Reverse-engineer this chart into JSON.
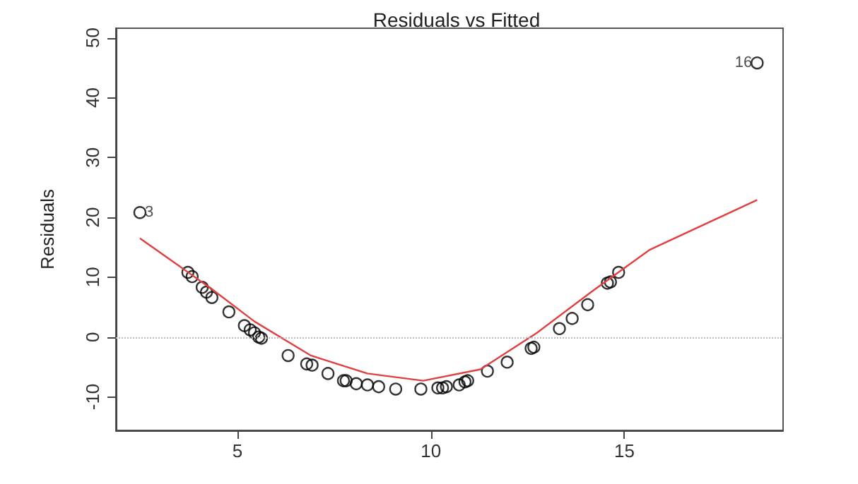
{
  "chart_data": {
    "type": "scatter",
    "title": "Residuals vs Fitted",
    "ylabel": "Residuals",
    "xlim": [
      1.86,
      19.1
    ],
    "ylim": [
      -15.6,
      51.6
    ],
    "xticks": [
      5,
      10,
      15
    ],
    "yticks": [
      -10,
      0,
      10,
      20,
      30,
      40,
      50
    ],
    "grid": false,
    "marker": "circle",
    "series": [
      {
        "color": "#000000",
        "x": [
          2.48,
          3.72,
          3.83,
          4.09,
          4.2,
          4.34,
          4.78,
          5.18,
          5.33,
          5.44,
          5.55,
          5.62,
          6.31,
          6.79,
          6.93,
          7.34,
          7.74,
          7.81,
          8.07,
          8.36,
          8.65,
          9.09,
          9.74,
          10.18,
          10.3,
          10.4,
          10.73,
          10.88,
          10.95,
          11.46,
          11.97,
          12.59,
          12.66,
          13.32,
          13.65,
          14.05,
          14.56,
          14.64,
          14.85,
          18.43
        ],
        "values": [
          20.8,
          10.8,
          10.1,
          8.3,
          7.5,
          6.6,
          4.2,
          1.9,
          1.2,
          0.7,
          0,
          -0.2,
          -3.1,
          -4.5,
          -4.7,
          -6.1,
          -7.3,
          -7.3,
          -7.8,
          -8.0,
          -8.3,
          -8.7,
          -8.7,
          -8.5,
          -8.5,
          -8.3,
          -8.0,
          -7.5,
          -7.3,
          -5.7,
          -4.2,
          -1.9,
          -1.7,
          1.4,
          3.1,
          5.4,
          9.0,
          9.2,
          10.8,
          45.8
        ]
      },
      {
        "type": "line",
        "color": "#e0403f",
        "marker": "none",
        "x": [
          2.48,
          4.34,
          5.44,
          6.9,
          8.36,
          9.8,
          11.28,
          12.74,
          14.2,
          15.66,
          18.43
        ],
        "values": [
          16.5,
          8.0,
          2.6,
          -3.1,
          -6.1,
          -7.3,
          -5.4,
          0.7,
          7.8,
          14.6,
          22.9
        ]
      }
    ],
    "ref_lines": [
      {
        "axis": "y",
        "value": 0,
        "color": "#bbbbbb",
        "line_style": "dotted"
      }
    ],
    "annotations": [
      {
        "text": "3",
        "x": 2.48,
        "y": 20.8
      },
      {
        "text": "16",
        "x": 18.43,
        "y": 45.8
      }
    ]
  }
}
